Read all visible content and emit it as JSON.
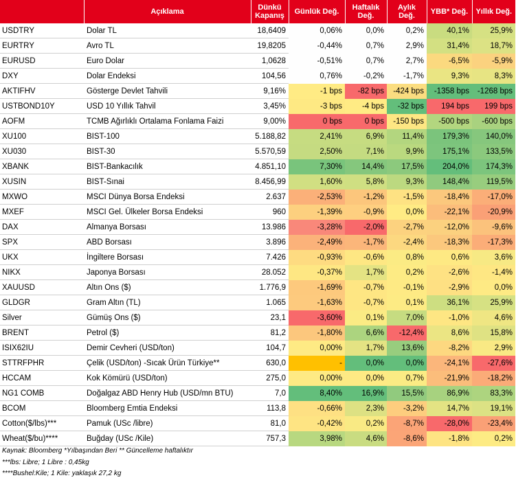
{
  "header": {
    "code": "",
    "desc": "Açıklama",
    "close": [
      "Dünkü",
      "Kapanış"
    ],
    "daily": "Günlük Değ.",
    "weekly": [
      "Haftalık",
      "Değ."
    ],
    "monthly": [
      "Aylık",
      "Değ."
    ],
    "ytd": "YBB* Değ.",
    "yearly": "Yıllık Değ."
  },
  "rows": [
    {
      "code": "USDTRY",
      "desc": "Dolar TL",
      "close": "18,6409",
      "d": "0,06%",
      "w": "0,0%",
      "m": "0,2%",
      "y": "40,1%",
      "yy": "25,9%",
      "c": [
        "#fefefe",
        "#fefefe",
        "#fefefe",
        "#c9dc80",
        "#d6e183"
      ]
    },
    {
      "code": "EURTRY",
      "desc": "Avro TL",
      "close": "19,8205",
      "d": "-0,44%",
      "w": "0,7%",
      "m": "2,9%",
      "y": "31,4%",
      "yy": "18,7%",
      "c": [
        "#fefefe",
        "#fefefe",
        "#fefefe",
        "#d3e082",
        "#dce284"
      ]
    },
    {
      "code": "EURUSD",
      "desc": "Euro Dolar",
      "close": "1,0628",
      "d": "-0,51%",
      "w": "0,7%",
      "m": "2,7%",
      "y": "-6,5%",
      "yy": "-5,9%",
      "c": [
        "#fefefe",
        "#fefefe",
        "#fefefe",
        "#fbd97f",
        "#fbd27f"
      ]
    },
    {
      "code": "DXY",
      "desc": "Dolar Endeksi",
      "close": "104,56",
      "d": "0,76%",
      "w": "-0,2%",
      "m": "-1,7%",
      "y": "9,3%",
      "yy": "8,3%",
      "c": [
        "#fefefe",
        "#fefefe",
        "#fefefe",
        "#eae583",
        "#e7e483"
      ]
    },
    {
      "code": "AKTIFHV",
      "desc": "Gösterge Devlet Tahvili",
      "close": "9,16%",
      "d": "-1 bps",
      "w": "-82 bps",
      "m": "-424 bps",
      "y": "-1358 bps",
      "yy": "-1268 bps",
      "c": [
        "#ffeb84",
        "#f8696b",
        "#fbdd80",
        "#63be7b",
        "#64be7b"
      ]
    },
    {
      "code": "USTBOND10Y",
      "desc": "USD 10 Yıllık Tahvil",
      "close": "3,45%",
      "d": "-3 bps",
      "w": "-4 bps",
      "m": "-32 bps",
      "y": "194 bps",
      "yy": "199 bps",
      "c": [
        "#fee983",
        "#ffeb84",
        "#63be7b",
        "#f8696b",
        "#f8696b"
      ]
    },
    {
      "code": "AOFM",
      "desc": "TCMB Ağırlıklı Ortalama Fonlama Faizi",
      "close": "9,00%",
      "d": "0 bps",
      "w": "0 bps",
      "m": "-150 bps",
      "y": "-500 bps",
      "yy": "-600 bps",
      "c": [
        "#f8696b",
        "#f8696b",
        "#fee783",
        "#b3d67f",
        "#a9d27f"
      ]
    },
    {
      "code": "XU100",
      "desc": "BIST-100",
      "close": "5.188,82",
      "d": "2,41%",
      "w": "6,9%",
      "m": "11,4%",
      "y": "179,3%",
      "yy": "140,0%",
      "c": [
        "#c6dc81",
        "#c6dc81",
        "#b3d67f",
        "#7bc47c",
        "#86c77d"
      ]
    },
    {
      "code": "XU030",
      "desc": "BIST-30",
      "close": "5.570,59",
      "d": "2,50%",
      "w": "7,1%",
      "m": "9,9%",
      "y": "175,1%",
      "yy": "133,5%",
      "c": [
        "#c5db81",
        "#c4db81",
        "#bad97f",
        "#7dc57d",
        "#8bc97d"
      ]
    },
    {
      "code": "XBANK",
      "desc": "BIST-Bankacılık",
      "close": "4.851,10",
      "d": "7,30%",
      "w": "14,4%",
      "m": "17,5%",
      "y": "204,0%",
      "yy": "174,3%",
      "c": [
        "#79c47c",
        "#85c77d",
        "#8cc97d",
        "#64be7b",
        "#7cc57d"
      ]
    },
    {
      "code": "XUSIN",
      "desc": "BIST-Sınai",
      "close": "8.456,99",
      "d": "1,60%",
      "w": "5,8%",
      "m": "9,3%",
      "y": "148,4%",
      "yy": "119,5%",
      "c": [
        "#d1df82",
        "#cfdf82",
        "#bcd980",
        "#90ca7e",
        "#98cd7e"
      ]
    },
    {
      "code": "MXWO",
      "desc": "MSCI Dünya Borsa Endeksi",
      "close": "2.637",
      "d": "-2,53%",
      "w": "-1,2%",
      "m": "-1,5%",
      "y": "-18,4%",
      "yy": "-17,0%",
      "c": [
        "#fbb079",
        "#fcc67c",
        "#fee283",
        "#fbc87d",
        "#fbae78"
      ]
    },
    {
      "code": "MXEF",
      "desc": "MSCI Gel. Ülkeler Borsa Endeksi",
      "close": "960",
      "d": "-1,39%",
      "w": "-0,9%",
      "m": "0,0%",
      "y": "-22,1%",
      "yy": "-20,9%",
      "c": [
        "#fdd07f",
        "#fecf80",
        "#ffeb84",
        "#fbbd7b",
        "#faa076"
      ]
    },
    {
      "code": "DAX",
      "desc": "Almanya Borsası",
      "close": "13.986",
      "d": "-3,28%",
      "w": "-2,0%",
      "m": "-2,7%",
      "y": "-12,0%",
      "yy": "-9,6%",
      "c": [
        "#f9887a",
        "#f8696b",
        "#fcd27f",
        "#fbd17f",
        "#fbc27c"
      ]
    },
    {
      "code": "SPX",
      "desc": "ABD Borsası",
      "close": "3.896",
      "d": "-2,49%",
      "w": "-1,7%",
      "m": "-2,4%",
      "y": "-18,3%",
      "yy": "-17,3%",
      "c": [
        "#fbb27a",
        "#fbb67a",
        "#fcd880",
        "#fbc87d",
        "#fbad78"
      ]
    },
    {
      "code": "UKX",
      "desc": "İngiltere Borsası",
      "close": "7.426",
      "d": "-0,93%",
      "w": "-0,6%",
      "m": "0,8%",
      "y": "0,6%",
      "yy": "3,6%",
      "c": [
        "#fedb81",
        "#fee783",
        "#fbeb84",
        "#fee983",
        "#f7e984"
      ]
    },
    {
      "code": "NIKX",
      "desc": "Japonya Borsası",
      "close": "28.052",
      "d": "-0,37%",
      "w": "1,7%",
      "m": "0,2%",
      "y": "-2,6%",
      "yy": "-1,4%",
      "c": [
        "#fee783",
        "#e4e383",
        "#fdeb84",
        "#fee283",
        "#fee783"
      ]
    },
    {
      "code": "XAUUSD",
      "desc": "Altın Ons ($)",
      "close": "1.776,9",
      "d": "-1,69%",
      "w": "-0,7%",
      "m": "-0,1%",
      "y": "-2,9%",
      "yy": "0,0%",
      "c": [
        "#fdc97d",
        "#fee683",
        "#feea84",
        "#fee083",
        "#feea84"
      ]
    },
    {
      "code": "GLDGR",
      "desc": "Gram Altın (TL)",
      "close": "1.065",
      "d": "-1,63%",
      "w": "-0,7%",
      "m": "0,1%",
      "y": "36,1%",
      "yy": "25,9%",
      "c": [
        "#fdca7e",
        "#fee683",
        "#fdeb84",
        "#cdde81",
        "#d6e183"
      ]
    },
    {
      "code": "Silver",
      "desc": "Gümüş Ons ($)",
      "close": "23,1",
      "d": "-3,60%",
      "w": "0,1%",
      "m": "7,0%",
      "y": "-1,0%",
      "yy": "4,6%",
      "c": [
        "#f8696b",
        "#fbeb84",
        "#c6dc81",
        "#fee683",
        "#efe683"
      ]
    },
    {
      "code": "BRENT",
      "desc": "Petrol ($)",
      "close": "81,2",
      "d": "-1,80%",
      "w": "6,6%",
      "m": "-12,4%",
      "y": "8,6%",
      "yy": "15,8%",
      "c": [
        "#fcc77d",
        "#acd47f",
        "#f8696b",
        "#ebe583",
        "#dfe283"
      ]
    },
    {
      "code": "ISIX62IU",
      "desc": "Demir Cevheri (USD/ton)",
      "close": "104,7",
      "d": "0,00%",
      "w": "1,7%",
      "m": "13,6%",
      "y": "-8,2%",
      "yy": "2,9%",
      "c": [
        "#feea84",
        "#e4e383",
        "#98cd7e",
        "#fdd880",
        "#f9e984"
      ]
    },
    {
      "code": "STTRFPHR",
      "desc": "Çelik (USD/ton) -Sıcak Ürün Türkiye**",
      "close": "630,0",
      "d": "-",
      "w": "0,0%",
      "m": "0,0%",
      "y": "-24,1%",
      "yy": "-27,6%",
      "c": [
        "#ffc000",
        "#63be7b",
        "#63be7b",
        "#fbb67b",
        "#f8696b"
      ]
    },
    {
      "code": "HCCAM",
      "desc": "Kok Kömürü (USD/ton)",
      "close": "275,0",
      "d": "0,00%",
      "w": "0,0%",
      "m": "0,7%",
      "y": "-21,9%",
      "yy": "-18,2%",
      "c": [
        "#feea84",
        "#feea84",
        "#fbeb84",
        "#fbbd7b",
        "#fbab78"
      ]
    },
    {
      "code": "NG1 COMB",
      "desc": "Doğalgaz ABD Henry Hub (USD/mn BTU)",
      "close": "7,0",
      "d": "8,40%",
      "w": "16,9%",
      "m": "15,5%",
      "y": "86,9%",
      "yy": "83,3%",
      "c": [
        "#63be7b",
        "#63be7b",
        "#91ca7e",
        "#a7d27f",
        "#add47f"
      ]
    },
    {
      "code": "BCOM",
      "desc": "Bloomberg Emtia Endeksi",
      "close": "113,8",
      "d": "-0,66%",
      "w": "2,3%",
      "m": "-3,2%",
      "y": "14,7%",
      "yy": "19,1%",
      "c": [
        "#fee083",
        "#ddE183",
        "#fdcd7e",
        "#e3e383",
        "#dce284"
      ]
    },
    {
      "code": "Cotton($/lbs)***",
      "desc": "Pamuk (USc /libre)",
      "close": "81,0",
      "d": "-0,42%",
      "w": "0,2%",
      "m": "-8,7%",
      "y": "-28,0%",
      "yy": "-23,4%",
      "c": [
        "#fee483",
        "#f9ea84",
        "#fba477",
        "#f8696b",
        "#faa076"
      ]
    },
    {
      "code": "Wheat($/bu)****",
      "desc": "Buğday (USc /Kile)",
      "close": "757,3",
      "d": "3,98%",
      "w": "4,6%",
      "m": "-8,6%",
      "y": "-1,8%",
      "yy": "0,2%",
      "c": [
        "#b8d880",
        "#c9dc81",
        "#fba577",
        "#fee483",
        "#fdeb84"
      ]
    }
  ],
  "notes": [
    "Kaynak: Bloomberg *Yılbaşından Beri  ** Güncelleme haftalıktır",
    "***lbs: Libre; 1 Libre : 0,45kg",
    "****Bushel:Kile; 1 Kile: yaklaşık 27,2 kg"
  ]
}
